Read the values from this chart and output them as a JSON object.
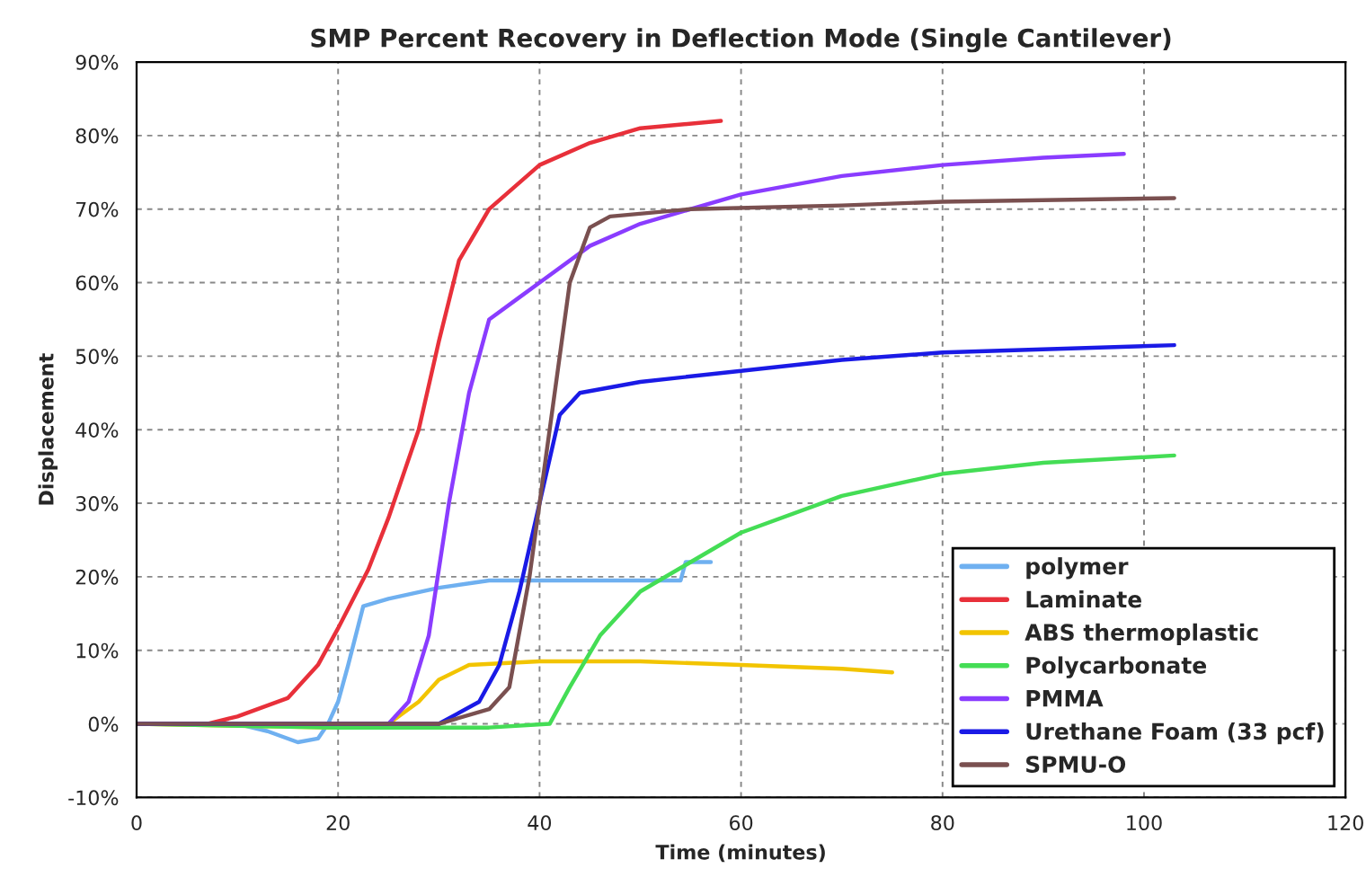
{
  "chart_data": {
    "type": "line",
    "title": "SMP Percent Recovery in Deflection Mode (Single Cantilever)",
    "xlabel": "Time (minutes)",
    "ylabel": "Displacement",
    "xlim": [
      0,
      120
    ],
    "xticks": [
      0,
      20,
      40,
      60,
      80,
      100,
      120
    ],
    "ylim": [
      -10,
      90
    ],
    "yticks": [
      {
        "value": -10,
        "label": "-10%"
      },
      {
        "value": 0,
        "label": "0%"
      },
      {
        "value": 10,
        "label": "10%"
      },
      {
        "value": 20,
        "label": "20%"
      },
      {
        "value": 30,
        "label": "30%"
      },
      {
        "value": 40,
        "label": "40%"
      },
      {
        "value": 50,
        "label": "50%"
      },
      {
        "value": 60,
        "label": "60%"
      },
      {
        "value": 70,
        "label": "70%"
      },
      {
        "value": 80,
        "label": "80%"
      },
      {
        "value": 90,
        "label": "90%"
      }
    ],
    "grid": true,
    "legend": "bottom right",
    "marker": "none",
    "line_style": "solid",
    "series": [
      {
        "name": "polymer",
        "color": "#6fb0f0",
        "x": [
          0,
          10,
          13,
          16,
          18,
          19,
          20,
          21,
          22.5,
          25,
          30,
          35,
          40,
          54,
          54.5,
          57
        ],
        "values": [
          0,
          0,
          -1,
          -2.5,
          -2,
          0,
          3,
          8,
          16,
          17,
          18.5,
          19.5,
          19.5,
          19.5,
          22,
          22
        ]
      },
      {
        "name": "Laminate",
        "color": "#e8303a",
        "x": [
          0,
          7,
          10,
          15,
          18,
          20,
          23,
          25,
          28,
          30,
          32,
          35,
          40,
          45,
          50,
          58
        ],
        "values": [
          0,
          0,
          1,
          3.5,
          8,
          13,
          21,
          28,
          40,
          52,
          63,
          70,
          76,
          79,
          81,
          82
        ]
      },
      {
        "name": "ABS thermoplastic",
        "color": "#f2c400",
        "x": [
          0,
          20,
          25,
          28,
          30,
          33,
          40,
          50,
          60,
          70,
          75
        ],
        "values": [
          0,
          -0.5,
          0,
          3,
          6,
          8,
          8.5,
          8.5,
          8,
          7.5,
          7
        ]
      },
      {
        "name": "Polycarbonate",
        "color": "#44dd55",
        "x": [
          0,
          20,
          35,
          41,
          43,
          46,
          50,
          55,
          60,
          70,
          80,
          90,
          103
        ],
        "values": [
          0,
          -0.5,
          -0.5,
          0,
          5,
          12,
          18,
          22,
          26,
          31,
          34,
          35.5,
          36.5
        ]
      },
      {
        "name": "PMMA",
        "color": "#8a3cff",
        "x": [
          0,
          25,
          27,
          29,
          31,
          33,
          35,
          38,
          40,
          45,
          50,
          60,
          70,
          80,
          90,
          98
        ],
        "values": [
          0,
          0,
          3,
          12,
          30,
          45,
          55,
          58,
          60,
          65,
          68,
          72,
          74.5,
          76,
          77,
          77.5
        ]
      },
      {
        "name": "Urethane Foam (33 pcf)",
        "color": "#1a1ae6",
        "x": [
          0,
          30,
          34,
          36,
          38,
          40,
          42,
          44,
          50,
          60,
          70,
          80,
          103
        ],
        "values": [
          0,
          0,
          3,
          8,
          18,
          30,
          42,
          45,
          46.5,
          48,
          49.5,
          50.5,
          51.5
        ]
      },
      {
        "name": "SPMU-O",
        "color": "#7a5050",
        "x": [
          0,
          30,
          35,
          37,
          39,
          41,
          43,
          45,
          47,
          55,
          70,
          80,
          103
        ],
        "values": [
          0,
          0,
          2,
          5,
          20,
          40,
          60,
          67.5,
          69,
          70,
          70.5,
          71,
          71.5
        ]
      }
    ]
  }
}
